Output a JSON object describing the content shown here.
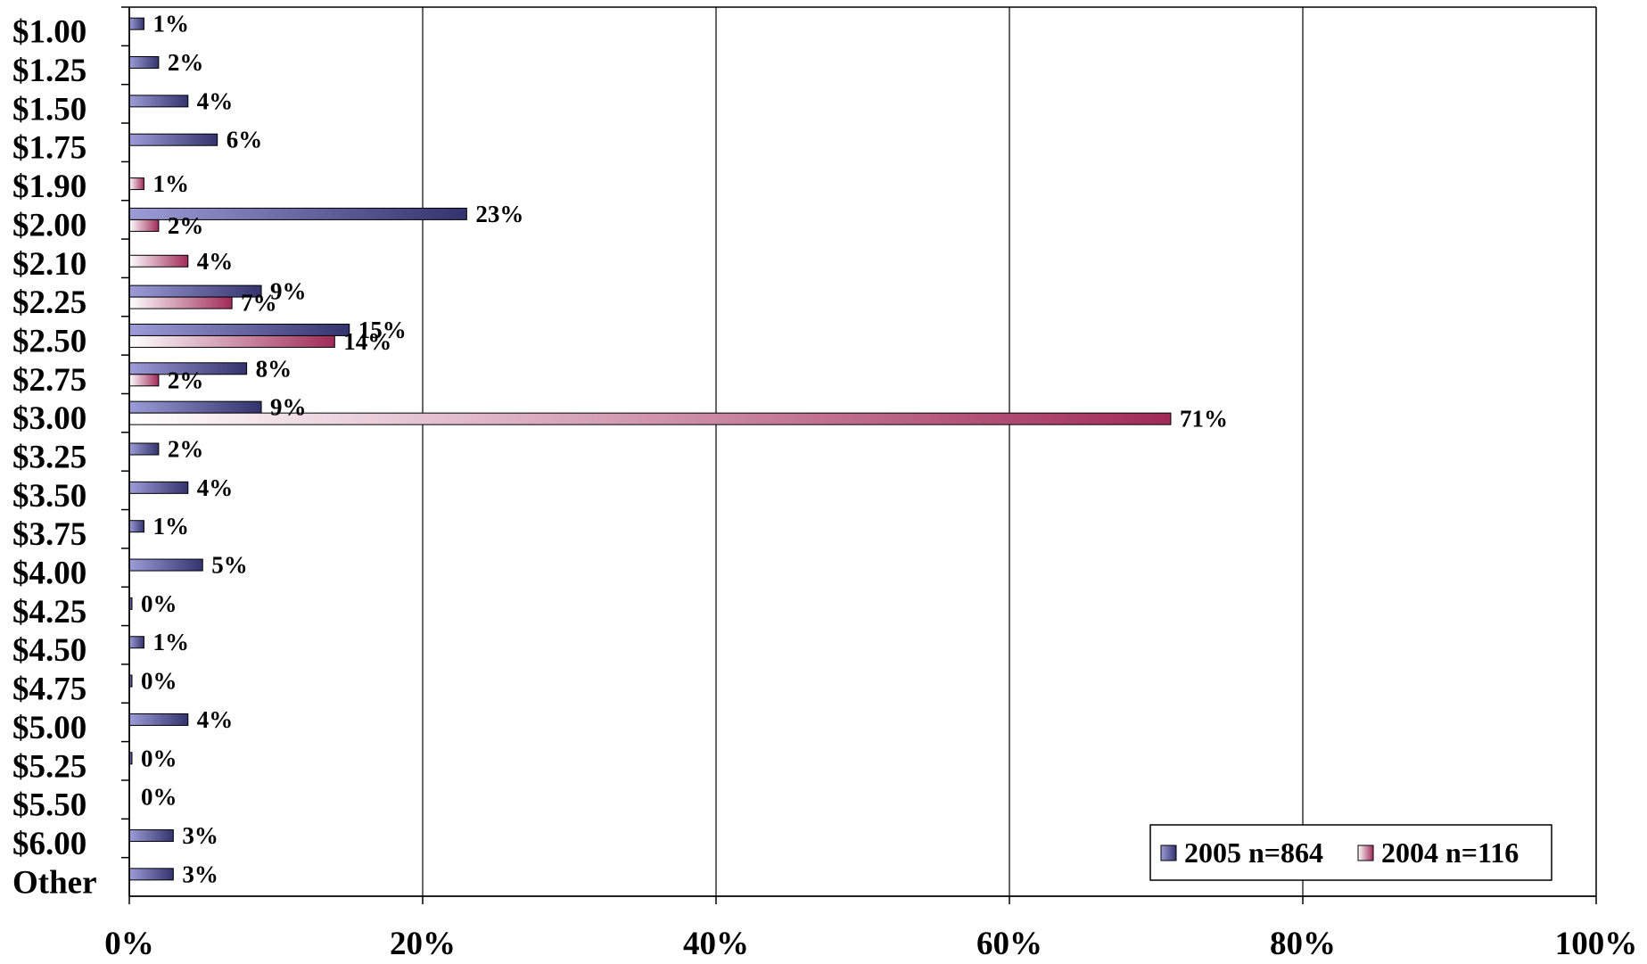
{
  "chart_data": {
    "type": "bar",
    "orientation": "horizontal",
    "categories": [
      "$1.00",
      "$1.25",
      "$1.50",
      "$1.75",
      "$1.90",
      "$2.00",
      "$2.10",
      "$2.25",
      "$2.50",
      "$2.75",
      "$3.00",
      "$3.25",
      "$3.50",
      "$3.75",
      "$4.00",
      "$4.25",
      "$4.50",
      "$4.75",
      "$5.00",
      "$5.25",
      "$5.50",
      "$6.00",
      "Other"
    ],
    "series": [
      {
        "name": "2005 n=864",
        "color": "#5555a0",
        "values": [
          1,
          2,
          4,
          6,
          null,
          23,
          null,
          9,
          15,
          8,
          9,
          2,
          4,
          1,
          5,
          0,
          1,
          0,
          4,
          0,
          0,
          3,
          3
        ],
        "labels": [
          "1%",
          "2%",
          "4%",
          "6%",
          "",
          "23%",
          "",
          "9%",
          "15%",
          "8%",
          "9%",
          "2%",
          "4%",
          "1%",
          "5%",
          "0%",
          "1%",
          "0%",
          "4%",
          "0%",
          "0%",
          "3%",
          "3%"
        ]
      },
      {
        "name": "2004 n=116",
        "color": "#a8385c",
        "values": [
          null,
          null,
          null,
          null,
          1,
          2,
          4,
          7,
          14,
          2,
          71,
          null,
          null,
          null,
          null,
          null,
          null,
          null,
          null,
          null,
          null,
          null,
          null
        ],
        "labels": [
          "",
          "",
          "",
          "",
          "1%",
          "2%",
          "4%",
          "7%",
          "14%",
          "2%",
          "71%",
          "",
          "",
          "",
          "",
          "",
          "",
          "",
          "",
          "",
          "",
          "",
          ""
        ]
      }
    ],
    "xlim": [
      0,
      100
    ],
    "xticks": [
      "0%",
      "20%",
      "40%",
      "60%",
      "80%",
      "100%"
    ],
    "grid": true,
    "legend": "bottom-right",
    "title": "",
    "xlabel": "",
    "ylabel": ""
  }
}
